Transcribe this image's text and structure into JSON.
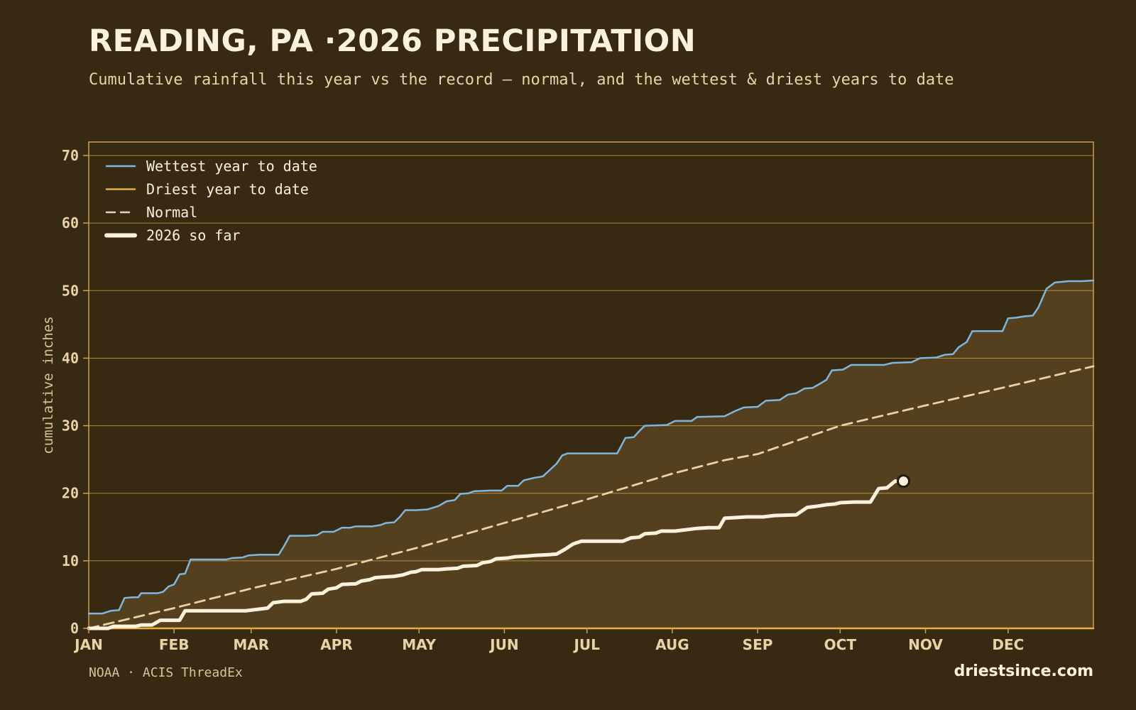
{
  "header": {
    "title": "READING, PA ·2026 PRECIPITATION",
    "subtitle": "Cumulative rainfall this year vs the record — normal, and the wettest & driest years to date"
  },
  "footer": {
    "source": "NOAA · ACIS ThreadEx",
    "brand": "driestsince.com"
  },
  "colors": {
    "background": "#382a12",
    "band_fill": "#54401e",
    "grid": "#c9a24a",
    "wettest": "#7fb6dc",
    "driest": "#e3b23c",
    "normal": "#e8d3a6",
    "current": "#fbf1dc"
  },
  "chart_data": {
    "type": "line",
    "xlabel": "",
    "ylabel": "cumulative inches",
    "xlim": [
      1,
      366
    ],
    "ylim": [
      0,
      72
    ],
    "yticks": [
      0,
      10,
      20,
      30,
      40,
      50,
      60,
      70
    ],
    "grid": true,
    "legend_position": "top-left",
    "month_ticks": [
      {
        "label": "JAN",
        "day": 1
      },
      {
        "label": "FEB",
        "day": 32
      },
      {
        "label": "MAR",
        "day": 60
      },
      {
        "label": "APR",
        "day": 91
      },
      {
        "label": "MAY",
        "day": 121
      },
      {
        "label": "JUN",
        "day": 152
      },
      {
        "label": "JUL",
        "day": 182
      },
      {
        "label": "AUG",
        "day": 213
      },
      {
        "label": "SEP",
        "day": 244
      },
      {
        "label": "OCT",
        "day": 274
      },
      {
        "label": "NOV",
        "day": 305
      },
      {
        "label": "DEC",
        "day": 335
      }
    ],
    "series": [
      {
        "name": "Wettest year to date",
        "style": "solid",
        "points": [
          [
            1,
            2.2
          ],
          [
            6,
            2.2
          ],
          [
            9,
            2.6
          ],
          [
            12,
            2.7
          ],
          [
            14,
            4.5
          ],
          [
            17,
            4.6
          ],
          [
            19,
            4.6
          ],
          [
            20,
            5.2
          ],
          [
            26,
            5.2
          ],
          [
            28,
            5.4
          ],
          [
            30,
            6.2
          ],
          [
            32,
            6.5
          ],
          [
            34,
            8.0
          ],
          [
            36,
            8.1
          ],
          [
            38,
            10.2
          ],
          [
            45,
            10.2
          ],
          [
            51,
            10.2
          ],
          [
            53,
            10.4
          ],
          [
            57,
            10.5
          ],
          [
            59,
            10.8
          ],
          [
            63,
            10.9
          ],
          [
            70,
            10.9
          ],
          [
            72,
            12.2
          ],
          [
            74,
            13.7
          ],
          [
            80,
            13.7
          ],
          [
            84,
            13.8
          ],
          [
            86,
            14.3
          ],
          [
            90,
            14.3
          ],
          [
            93,
            14.9
          ],
          [
            96,
            14.9
          ],
          [
            98,
            15.1
          ],
          [
            104,
            15.1
          ],
          [
            107,
            15.3
          ],
          [
            109,
            15.6
          ],
          [
            112,
            15.7
          ],
          [
            114,
            16.5
          ],
          [
            116,
            17.5
          ],
          [
            120,
            17.5
          ],
          [
            124,
            17.6
          ],
          [
            128,
            18.1
          ],
          [
            131,
            18.8
          ],
          [
            134,
            19.0
          ],
          [
            136,
            19.9
          ],
          [
            139,
            20.0
          ],
          [
            141,
            20.3
          ],
          [
            147,
            20.4
          ],
          [
            151,
            20.4
          ],
          [
            153,
            21.1
          ],
          [
            157,
            21.1
          ],
          [
            159,
            21.9
          ],
          [
            163,
            22.3
          ],
          [
            166,
            22.5
          ],
          [
            171,
            24.4
          ],
          [
            173,
            25.6
          ],
          [
            175,
            25.9
          ],
          [
            182,
            25.9
          ],
          [
            193,
            25.9
          ],
          [
            196,
            28.2
          ],
          [
            199,
            28.3
          ],
          [
            201,
            29.2
          ],
          [
            203,
            30.0
          ],
          [
            211,
            30.1
          ],
          [
            214,
            30.7
          ],
          [
            220,
            30.7
          ],
          [
            222,
            31.3
          ],
          [
            232,
            31.4
          ],
          [
            236,
            32.2
          ],
          [
            239,
            32.7
          ],
          [
            244,
            32.8
          ],
          [
            247,
            33.7
          ],
          [
            252,
            33.8
          ],
          [
            255,
            34.6
          ],
          [
            258,
            34.8
          ],
          [
            261,
            35.5
          ],
          [
            264,
            35.6
          ],
          [
            267,
            36.3
          ],
          [
            269,
            36.8
          ],
          [
            271,
            38.2
          ],
          [
            275,
            38.3
          ],
          [
            278,
            39.0
          ],
          [
            290,
            39.0
          ],
          [
            293,
            39.3
          ],
          [
            300,
            39.4
          ],
          [
            303,
            40.0
          ],
          [
            309,
            40.1
          ],
          [
            312,
            40.5
          ],
          [
            315,
            40.6
          ],
          [
            317,
            41.6
          ],
          [
            320,
            42.4
          ],
          [
            322,
            44.0
          ],
          [
            333,
            44.0
          ],
          [
            335,
            45.9
          ],
          [
            338,
            46.0
          ],
          [
            341,
            46.2
          ],
          [
            344,
            46.3
          ],
          [
            346,
            47.5
          ],
          [
            349,
            50.3
          ],
          [
            352,
            51.2
          ],
          [
            357,
            51.4
          ],
          [
            362,
            51.4
          ],
          [
            366,
            51.5
          ]
        ],
        "note_points": "values read from gridlines; x in day-of-year"
      },
      {
        "name": "Driest year to date",
        "style": "solid",
        "points": [
          [
            1,
            0.0
          ],
          [
            366,
            0.0
          ]
        ]
      },
      {
        "name": "Normal",
        "style": "dashed",
        "points": [
          [
            1,
            0.0
          ],
          [
            32,
            3.0
          ],
          [
            60,
            5.9
          ],
          [
            91,
            8.8
          ],
          [
            121,
            12.0
          ],
          [
            152,
            15.6
          ],
          [
            182,
            19.1
          ],
          [
            213,
            22.9
          ],
          [
            232,
            24.9
          ],
          [
            244,
            25.8
          ],
          [
            274,
            30.0
          ],
          [
            305,
            33.0
          ],
          [
            335,
            35.8
          ],
          [
            366,
            38.8
          ]
        ]
      },
      {
        "name": "2026 so far",
        "style": "bold",
        "points": [
          [
            1,
            0.0
          ],
          [
            8,
            0.0
          ],
          [
            10,
            0.3
          ],
          [
            18,
            0.3
          ],
          [
            20,
            0.5
          ],
          [
            24,
            0.5
          ],
          [
            27,
            1.2
          ],
          [
            34,
            1.2
          ],
          [
            36,
            2.6
          ],
          [
            50,
            2.6
          ],
          [
            52,
            2.6
          ],
          [
            58,
            2.6
          ],
          [
            62,
            2.8
          ],
          [
            66,
            3.0
          ],
          [
            68,
            3.8
          ],
          [
            72,
            4.0
          ],
          [
            74,
            4.0
          ],
          [
            78,
            4.0
          ],
          [
            80,
            4.3
          ],
          [
            82,
            5.1
          ],
          [
            86,
            5.2
          ],
          [
            88,
            5.8
          ],
          [
            91,
            6.0
          ],
          [
            93,
            6.5
          ],
          [
            98,
            6.6
          ],
          [
            100,
            7.0
          ],
          [
            103,
            7.2
          ],
          [
            105,
            7.5
          ],
          [
            108,
            7.6
          ],
          [
            112,
            7.7
          ],
          [
            115,
            7.9
          ],
          [
            118,
            8.3
          ],
          [
            120,
            8.4
          ],
          [
            122,
            8.7
          ],
          [
            128,
            8.7
          ],
          [
            131,
            8.8
          ],
          [
            135,
            8.9
          ],
          [
            137,
            9.2
          ],
          [
            142,
            9.3
          ],
          [
            144,
            9.7
          ],
          [
            147,
            9.9
          ],
          [
            149,
            10.3
          ],
          [
            153,
            10.4
          ],
          [
            156,
            10.6
          ],
          [
            160,
            10.7
          ],
          [
            163,
            10.8
          ],
          [
            168,
            10.9
          ],
          [
            171,
            11.0
          ],
          [
            174,
            11.7
          ],
          [
            177,
            12.5
          ],
          [
            180,
            12.9
          ],
          [
            188,
            12.9
          ],
          [
            195,
            12.9
          ],
          [
            198,
            13.4
          ],
          [
            201,
            13.5
          ],
          [
            203,
            14.0
          ],
          [
            207,
            14.1
          ],
          [
            209,
            14.4
          ],
          [
            214,
            14.4
          ],
          [
            218,
            14.6
          ],
          [
            222,
            14.8
          ],
          [
            226,
            14.9
          ],
          [
            230,
            14.9
          ],
          [
            232,
            16.3
          ],
          [
            236,
            16.4
          ],
          [
            240,
            16.5
          ],
          [
            246,
            16.5
          ],
          [
            250,
            16.7
          ],
          [
            258,
            16.8
          ],
          [
            262,
            17.9
          ],
          [
            266,
            18.1
          ],
          [
            269,
            18.3
          ],
          [
            272,
            18.4
          ],
          [
            274,
            18.6
          ],
          [
            279,
            18.7
          ],
          [
            285,
            18.7
          ],
          [
            288,
            20.7
          ],
          [
            291,
            20.8
          ],
          [
            294,
            21.8
          ],
          [
            297,
            21.8
          ]
        ],
        "current_point": [
          297,
          21.8
        ]
      }
    ]
  }
}
